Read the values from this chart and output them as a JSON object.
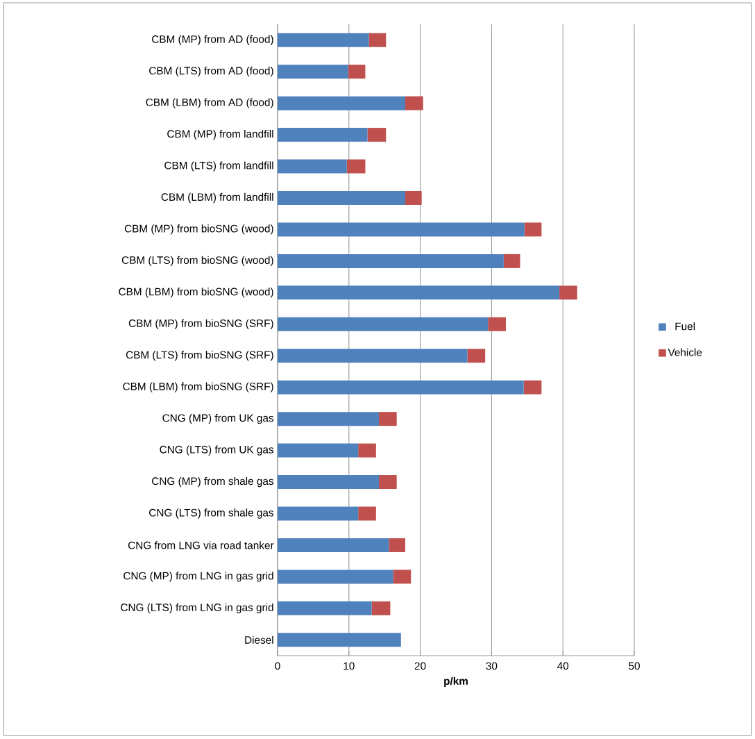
{
  "chart_data": {
    "type": "bar",
    "orientation": "horizontal",
    "stacked": true,
    "xlabel": "p/km",
    "categories": [
      "CBM (MP) from AD (food)",
      "CBM (LTS) from AD (food)",
      "CBM (LBM) from AD (food)",
      "CBM (MP) from landfill",
      "CBM (LTS) from landfill",
      "CBM (LBM) from landfill",
      "CBM (MP) from bioSNG (wood)",
      "CBM (LTS) from bioSNG (wood)",
      "CBM (LBM) from bioSNG (wood)",
      "CBM (MP) from bioSNG (SRF)",
      "CBM (LTS) from bioSNG (SRF)",
      "CBM (LBM) from bioSNG (SRF)",
      "CNG (MP) from UK gas",
      "CNG (LTS) from UK gas",
      "CNG (MP) from shale gas",
      "CNG (LTS) from shale gas",
      "CNG from LNG via road tanker",
      "CNG (MP) from LNG in gas grid",
      "CNG (LTS) from LNG in gas grid",
      "Diesel"
    ],
    "series": [
      {
        "name": "Fuel",
        "color": "#4f81bd",
        "values": [
          12.8,
          9.9,
          17.9,
          12.6,
          9.7,
          17.9,
          34.6,
          31.7,
          39.5,
          29.5,
          26.6,
          34.5,
          14.2,
          11.3,
          14.2,
          11.3,
          15.6,
          16.2,
          13.2,
          17.3
        ]
      },
      {
        "name": "Vehicle",
        "color": "#c0504d",
        "values": [
          2.4,
          2.4,
          2.5,
          2.6,
          2.6,
          2.3,
          2.4,
          2.3,
          2.5,
          2.5,
          2.5,
          2.5,
          2.5,
          2.5,
          2.5,
          2.5,
          2.3,
          2.5,
          2.6,
          null
        ]
      }
    ],
    "xlim": [
      0,
      50
    ],
    "xticks": [
      0,
      10,
      20,
      30,
      40,
      50
    ],
    "grid": "x",
    "legend": "right"
  }
}
